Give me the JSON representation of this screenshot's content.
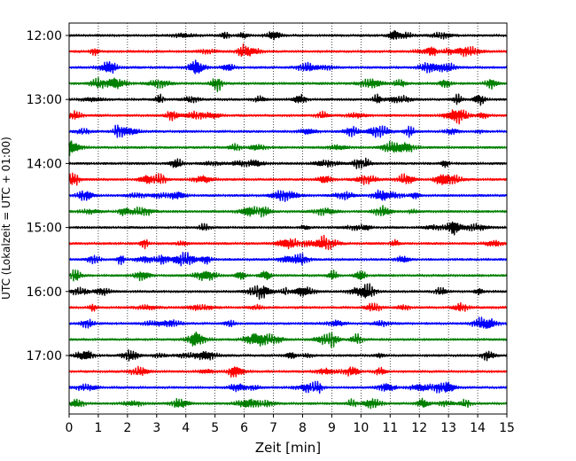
{
  "chart_data": {
    "type": "line",
    "title": "",
    "xlabel": "Zeit  [min]",
    "ylabel": "UTC (Lokalzeit = UTC + 01:00)",
    "x_ticks": [
      "0",
      "1",
      "2",
      "3",
      "4",
      "5",
      "6",
      "7",
      "8",
      "9",
      "10",
      "11",
      "12",
      "13",
      "14",
      "15"
    ],
    "xlim": [
      0,
      15
    ],
    "y_tick_labels": [
      "12:00",
      "13:00",
      "14:00",
      "15:00",
      "16:00",
      "17:00"
    ],
    "trace_start": "12:00",
    "trace_end": "17:45",
    "trace_interval_minutes": 15,
    "trace_colors": [
      "#000000",
      "#ff0000",
      "#0000ff",
      "#008000"
    ],
    "vertical_grid": "dotted",
    "legend": "none"
  }
}
